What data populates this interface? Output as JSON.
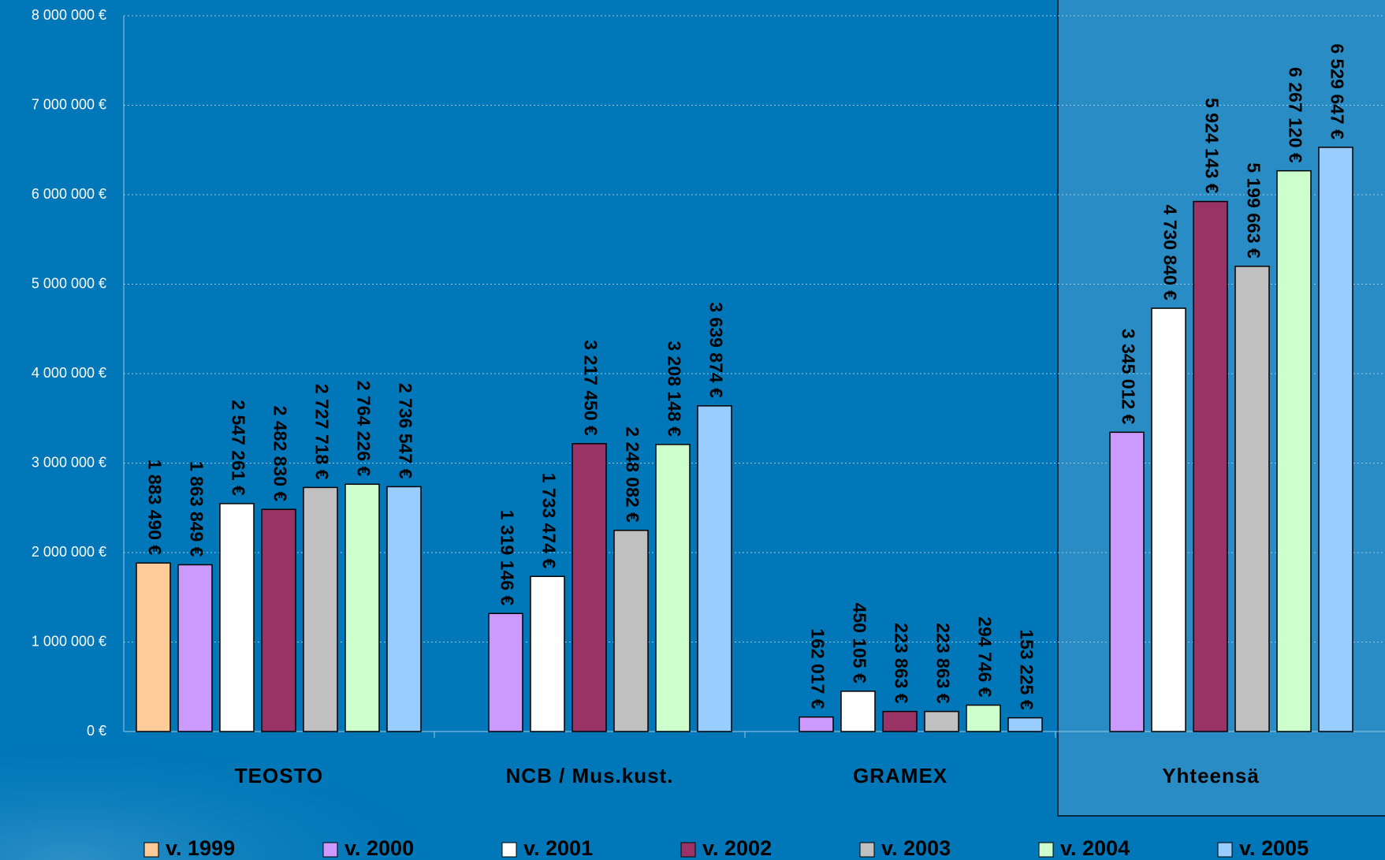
{
  "chart_data": {
    "type": "bar",
    "categories": [
      "TEOSTO",
      "NCB  / Mus.kust.",
      "GRAMEX",
      "Yhteensä"
    ],
    "series": [
      {
        "name": "v. 1999",
        "color": "#ffcc99",
        "values": [
          1883490,
          null,
          null,
          null
        ],
        "value_labels": [
          "1 883 490 €",
          null,
          null,
          null
        ]
      },
      {
        "name": "v. 2000",
        "color": "#cc99ff",
        "values": [
          1863849,
          1319146,
          162017,
          3345012
        ],
        "value_labels": [
          "1 863 849 €",
          "1 319 146 €",
          "162 017 €",
          "3 345 012 €"
        ]
      },
      {
        "name": "v. 2001",
        "color": "#ffffff",
        "values": [
          2547261,
          1733474,
          450105,
          4730840
        ],
        "value_labels": [
          "2 547 261 €",
          "1 733 474 €",
          "450 105 €",
          "4 730 840 €"
        ]
      },
      {
        "name": "v. 2002",
        "color": "#993366",
        "values": [
          2482830,
          3217450,
          223863,
          5924143
        ],
        "value_labels": [
          "2 482 830 €",
          "3 217 450 €",
          "223 863 €",
          "5 924 143 €"
        ]
      },
      {
        "name": "v. 2003",
        "color": "#c0c0c0",
        "values": [
          2727718,
          2248082,
          223863,
          5199663
        ],
        "value_labels": [
          "2 727 718 €",
          "2 248 082 €",
          "223 863 €",
          "5 199 663 €"
        ]
      },
      {
        "name": "v. 2004",
        "color": "#ccffcc",
        "values": [
          2764226,
          3208148,
          294746,
          6267120
        ],
        "value_labels": [
          "2 764 226 €",
          "3 208 148 €",
          "294 746 €",
          "6 267 120 €"
        ]
      },
      {
        "name": "v. 2005",
        "color": "#99ccff",
        "values": [
          2736547,
          3639874,
          153225,
          6529647
        ],
        "value_labels": [
          "2 736 547 €",
          "3 639 874 €",
          "153 225 €",
          "6 529 647 €"
        ]
      }
    ],
    "ylim": [
      0,
      8000000
    ],
    "yticks": [
      {
        "value": 0,
        "label": "0 €"
      },
      {
        "value": 1000000,
        "label": "1 000 000 €"
      },
      {
        "value": 2000000,
        "label": "2 000 000 €"
      },
      {
        "value": 3000000,
        "label": "3 000 000 €"
      },
      {
        "value": 4000000,
        "label": "4 000 000 €"
      },
      {
        "value": 5000000,
        "label": "5 000 000 €"
      },
      {
        "value": 6000000,
        "label": "6 000 000 €"
      },
      {
        "value": 7000000,
        "label": "7 000 000 €"
      },
      {
        "value": 8000000,
        "label": "8 000 000 €"
      }
    ],
    "grid": true,
    "legend": "bottom"
  }
}
